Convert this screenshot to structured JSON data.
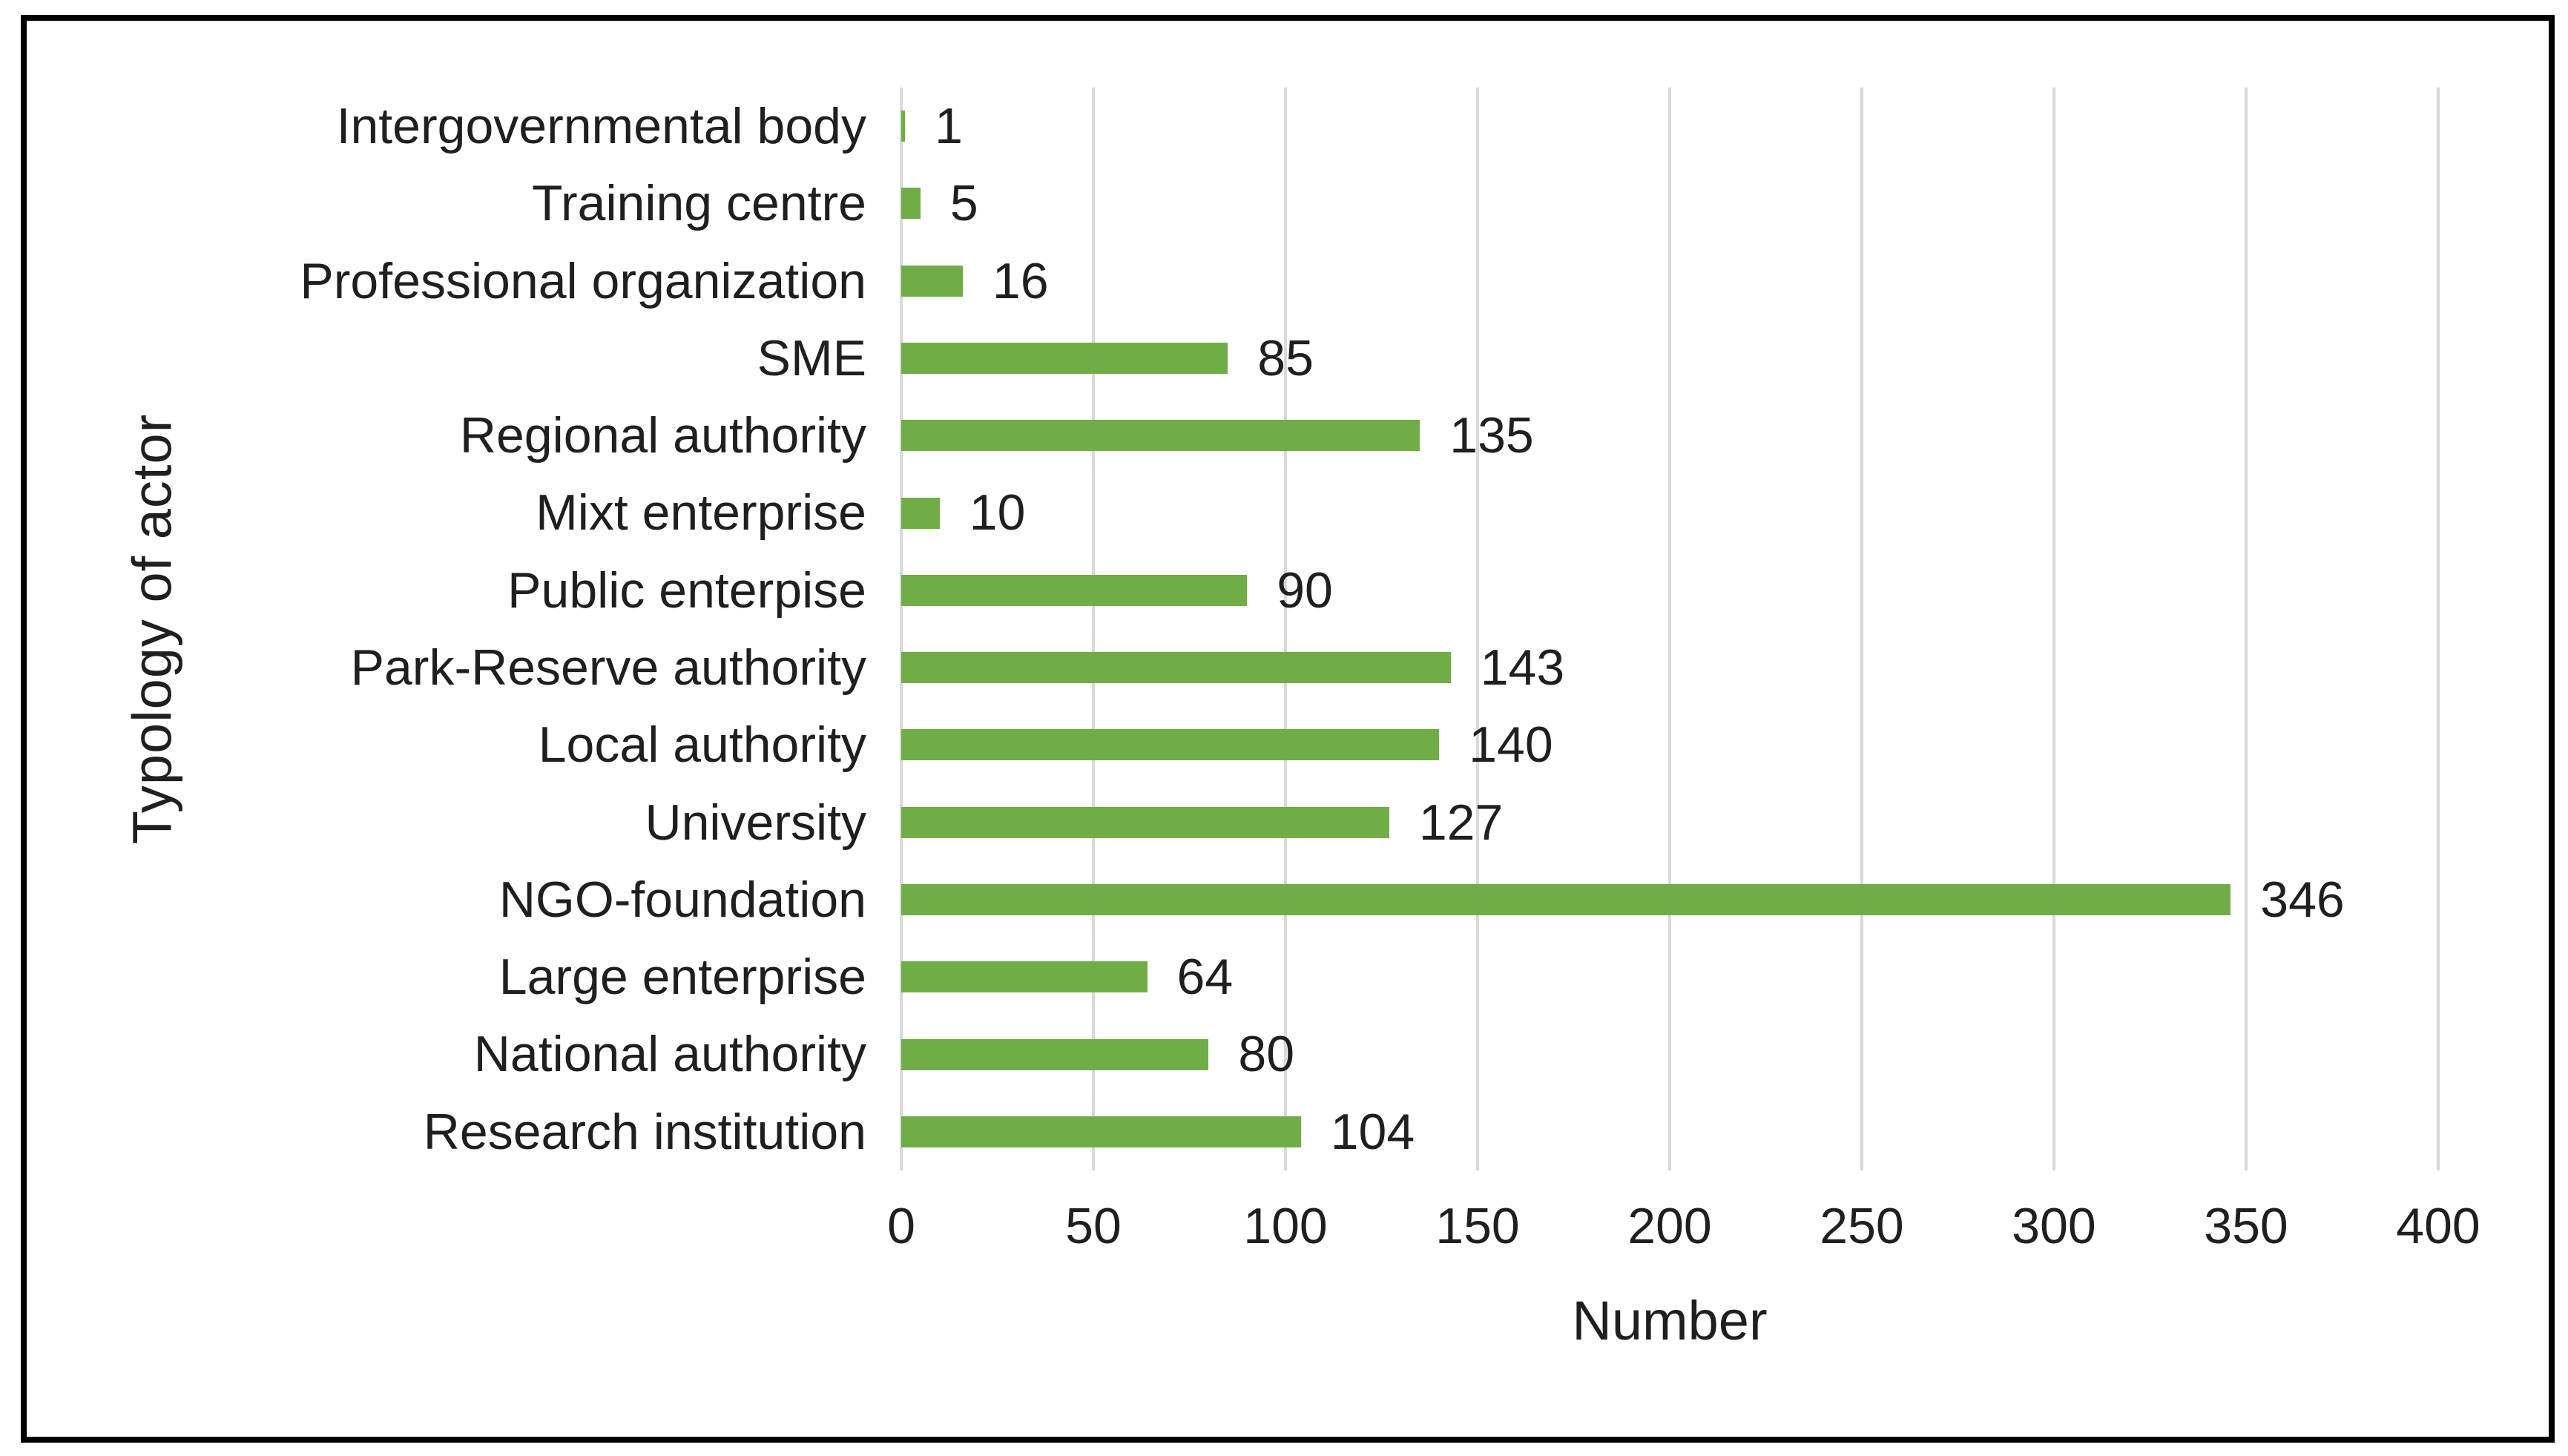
{
  "chart_data": {
    "type": "bar",
    "orientation": "horizontal",
    "xlabel": "Number",
    "ylabel": "Typology of actor",
    "categories": [
      "Intergovernmental body",
      "Training centre",
      "Professional organization",
      "SME",
      "Regional authority",
      "Mixt enterprise",
      "Public enterpise",
      "Park-Reserve authority",
      "Local authority",
      "University",
      "NGO-foundation",
      "Large enterprise",
      "National authority",
      "Research institution"
    ],
    "values": [
      1,
      5,
      16,
      85,
      135,
      10,
      90,
      143,
      140,
      127,
      346,
      64,
      80,
      104
    ],
    "xlim": [
      0,
      400
    ],
    "x_ticks": [
      0,
      50,
      100,
      150,
      200,
      250,
      300,
      350,
      400
    ],
    "grid": true,
    "data_labels": true,
    "legend_position": "none",
    "bar_color": "#70AD47",
    "gridline_color": "#d9d9d9",
    "text_color": "#1f1f1f",
    "frame_color": "#000000"
  }
}
